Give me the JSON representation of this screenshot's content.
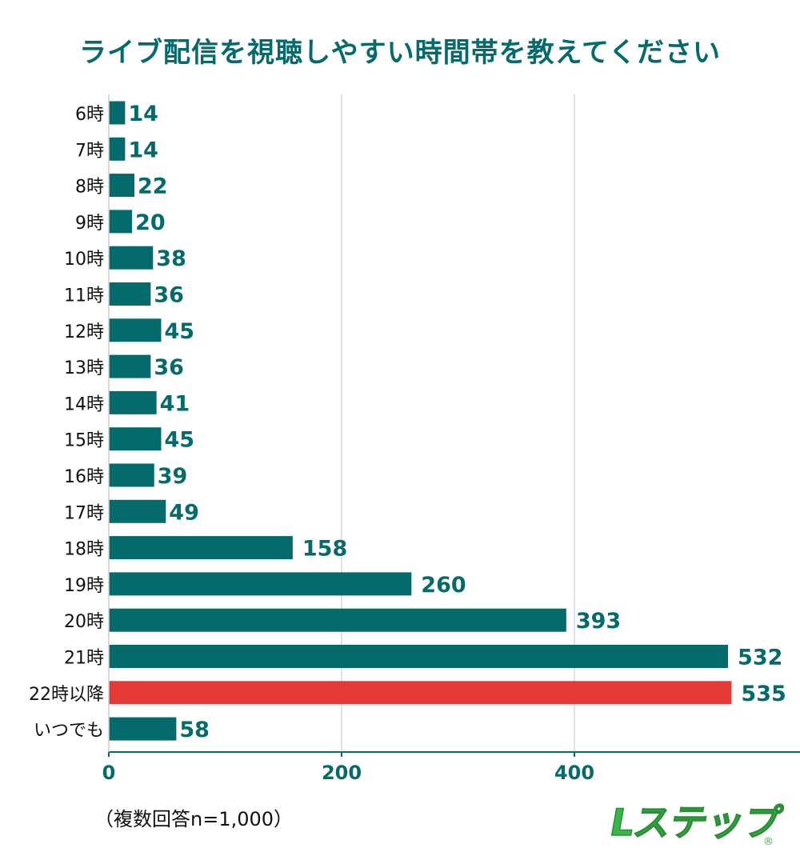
{
  "title": "ライブ配信を視聴しやすい時間帯を教えてください",
  "note": "（複数回答n=1,000）",
  "logo": {
    "text": "Lステップ",
    "mark": "®"
  },
  "colors": {
    "bar": "#056a6c",
    "highlight": "#e53935",
    "label": "#056a6c",
    "axis": "#056a6c",
    "category_text": "#111111",
    "logo_green": "#39b54a"
  },
  "chart_data": {
    "type": "bar",
    "orientation": "horizontal",
    "title": "ライブ配信を視聴しやすい時間帯を教えてください",
    "categories": [
      "6時",
      "7時",
      "8時",
      "9時",
      "10時",
      "11時",
      "12時",
      "13時",
      "14時",
      "15時",
      "16時",
      "17時",
      "18時",
      "19時",
      "20時",
      "21時",
      "22時以降",
      "いつでも"
    ],
    "values": [
      14,
      14,
      22,
      20,
      38,
      36,
      45,
      36,
      41,
      45,
      39,
      49,
      158,
      260,
      393,
      532,
      535,
      58
    ],
    "highlight_index": 16,
    "x_ticks": [
      0,
      200,
      400
    ],
    "xlim": [
      0,
      590
    ],
    "grid": true
  }
}
